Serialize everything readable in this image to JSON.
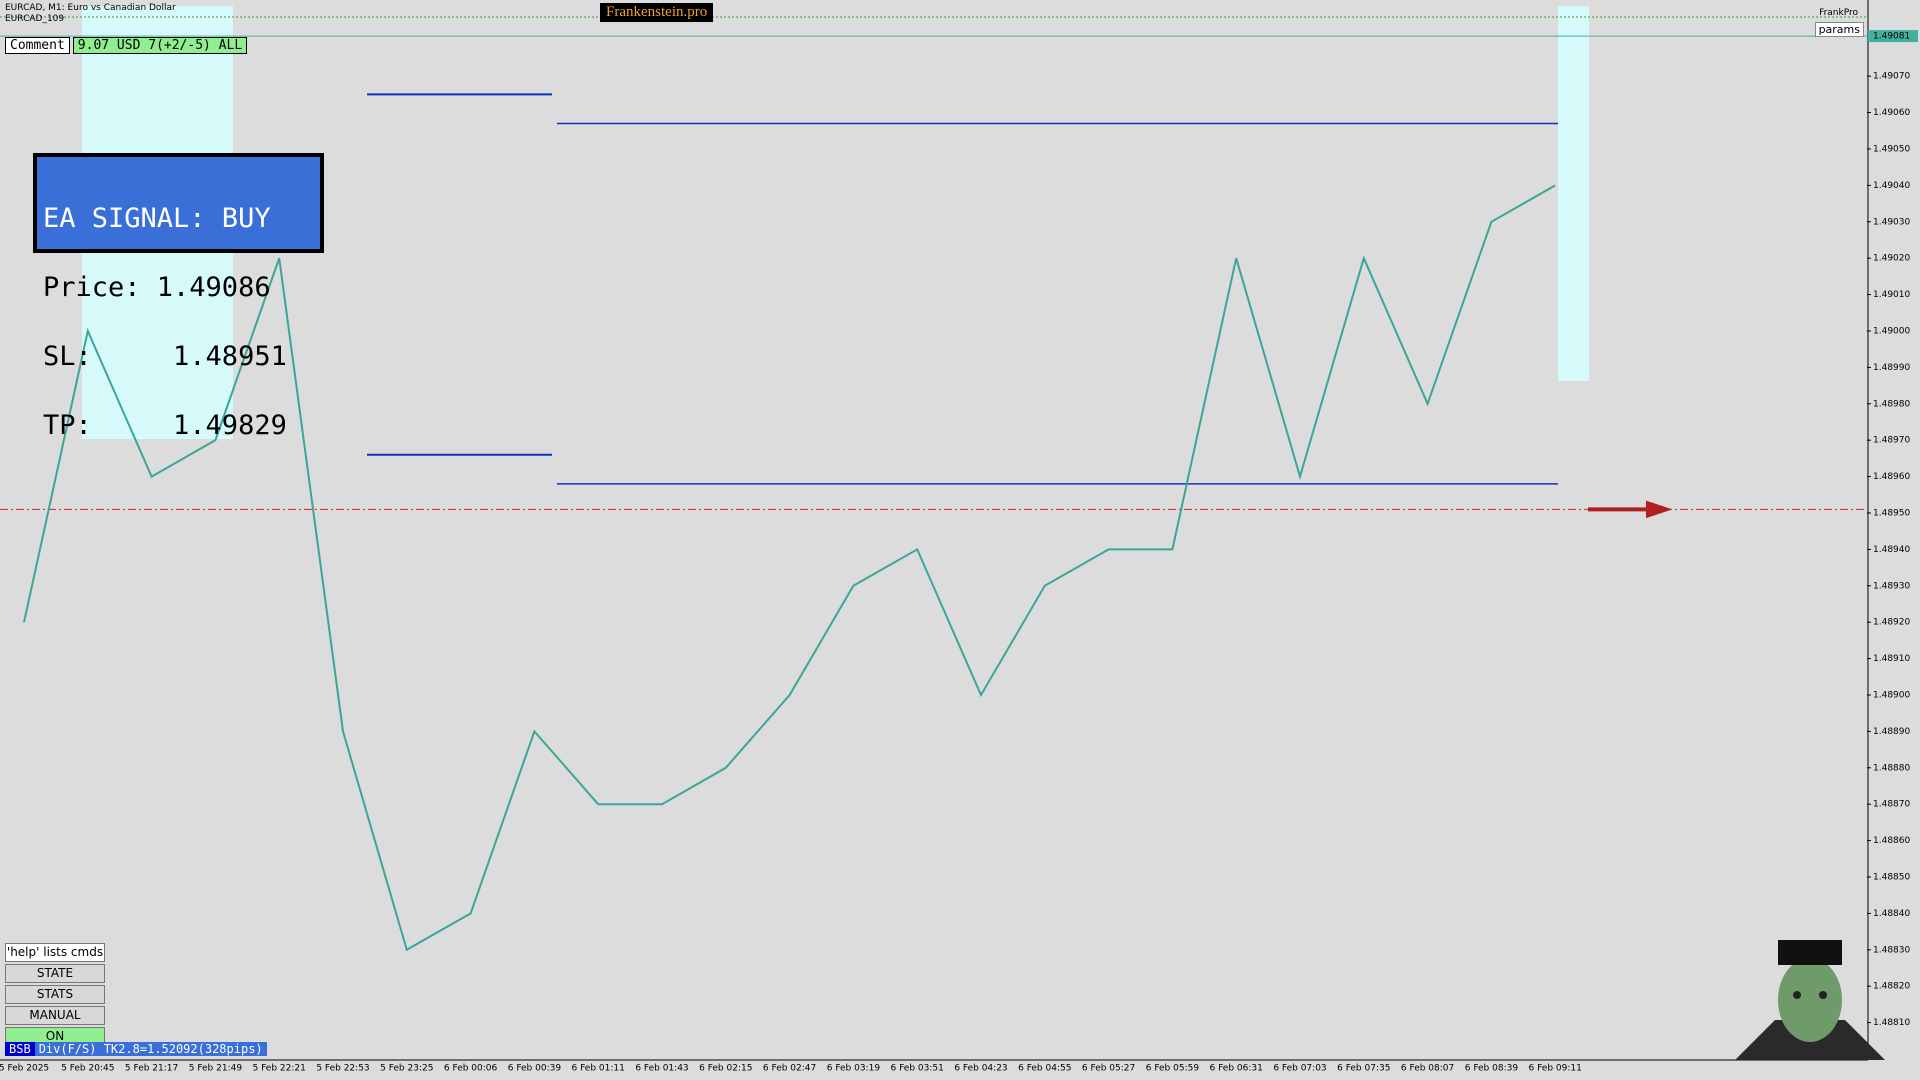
{
  "header": {
    "symbol": "EURCAD, M1:  Euro vs Canadian Dollar",
    "subtitle": "EURCAD_109",
    "brand": "Frankenstein.pro",
    "user": "FrankPro",
    "params": "params"
  },
  "comment": {
    "label": "Comment",
    "value": "9.07 USD 7(+2/-5) ALL"
  },
  "signal": {
    "lines": [
      "EA SIGNAL: BUY",
      "Price: 1.49086",
      "SL:     1.48951",
      "TP:     1.49829"
    ]
  },
  "buttons": [
    "'help' lists cmds",
    "STATE",
    "STATS",
    "MANUAL",
    "ON"
  ],
  "status": {
    "tag": "BSB",
    "text": "Div(F/S) TK2.8=1.52092(328pips)"
  },
  "chart_data": {
    "type": "line",
    "categories": [
      "5 Feb 2025",
      "5 Feb 20:45",
      "5 Feb 21:17",
      "5 Feb 21:49",
      "5 Feb 22:21",
      "5 Feb 22:53",
      "5 Feb 23:25",
      "6 Feb 00:06",
      "6 Feb 00:39",
      "6 Feb 01:11",
      "6 Feb 01:43",
      "6 Feb 02:15",
      "6 Feb 02:47",
      "6 Feb 03:19",
      "6 Feb 03:51",
      "6 Feb 04:23",
      "6 Feb 04:55",
      "6 Feb 05:27",
      "6 Feb 05:59",
      "6 Feb 06:31",
      "6 Feb 07:03",
      "6 Feb 07:35",
      "6 Feb 08:07",
      "6 Feb 08:39",
      "6 Feb 09:11"
    ],
    "values": [
      1.4892,
      1.49,
      1.4896,
      1.4897,
      1.4902,
      1.4889,
      1.4883,
      1.4884,
      1.4889,
      1.4887,
      1.4887,
      1.4888,
      1.489,
      1.4893,
      1.4894,
      1.489,
      1.4893,
      1.4894,
      1.4894,
      1.4902,
      1.4896,
      1.4902,
      1.4898,
      1.4903,
      1.4904
    ],
    "color": "#3aa69a",
    "ylim": [
      1.488,
      1.49089
    ],
    "yticks": [
      {
        "value": 1.4881,
        "label": "1.48810"
      },
      {
        "value": 1.4882,
        "label": "1.48820"
      },
      {
        "value": 1.4883,
        "label": "1.48830"
      },
      {
        "value": 1.4884,
        "label": "1.48840"
      },
      {
        "value": 1.4885,
        "label": "1.48850"
      },
      {
        "value": 1.4886,
        "label": "1.48860"
      },
      {
        "value": 1.4887,
        "label": "1.48870"
      },
      {
        "value": 1.4888,
        "label": "1.48880"
      },
      {
        "value": 1.4889,
        "label": "1.48890"
      },
      {
        "value": 1.489,
        "label": "1.48900"
      },
      {
        "value": 1.4891,
        "label": "1.48910"
      },
      {
        "value": 1.4892,
        "label": "1.48920"
      },
      {
        "value": 1.4893,
        "label": "1.48930"
      },
      {
        "value": 1.4894,
        "label": "1.48940"
      },
      {
        "value": 1.4895,
        "label": "1.48950"
      },
      {
        "value": 1.4896,
        "label": "1.48960"
      },
      {
        "value": 1.4897,
        "label": "1.48970"
      },
      {
        "value": 1.4898,
        "label": "1.48980"
      },
      {
        "value": 1.4899,
        "label": "1.48990"
      },
      {
        "value": 1.49,
        "label": "1.49000"
      },
      {
        "value": 1.4901,
        "label": "1.49010"
      },
      {
        "value": 1.4902,
        "label": "1.49020"
      },
      {
        "value": 1.4903,
        "label": "1.49030"
      },
      {
        "value": 1.4904,
        "label": "1.49040"
      },
      {
        "value": 1.4905,
        "label": "1.49050"
      },
      {
        "value": 1.4906,
        "label": "1.49060"
      },
      {
        "value": 1.4907,
        "label": "1.49070"
      }
    ],
    "current_price": {
      "value": 1.49081,
      "label": "1.49081"
    },
    "levels": [
      1.49065,
      1.49057,
      1.48966,
      1.48958
    ],
    "stop_level": 1.48951
  }
}
